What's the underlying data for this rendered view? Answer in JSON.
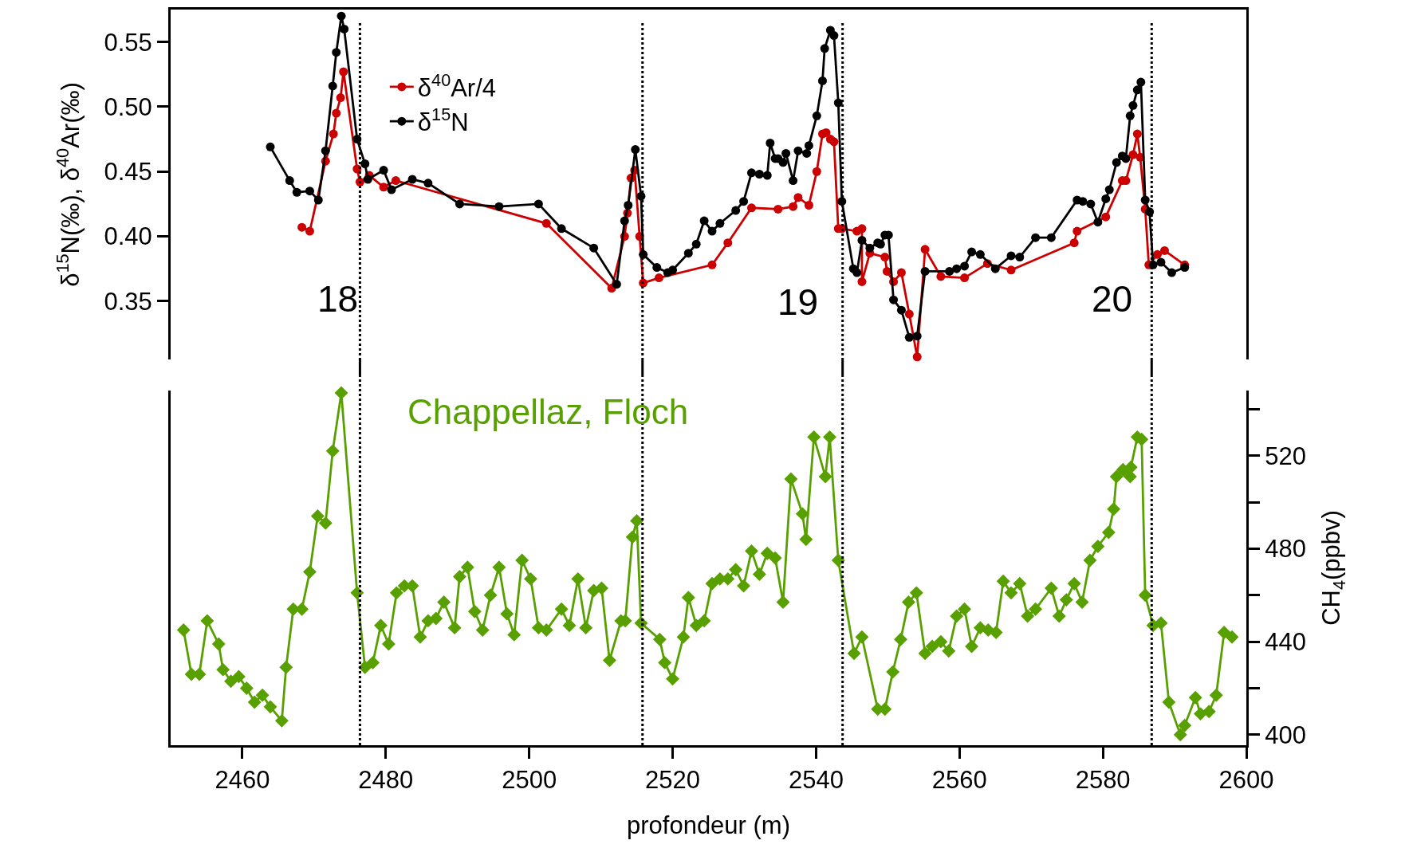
{
  "chart_data": [
    {
      "type": "line",
      "ylabel": "δ$^{15}$N(‰), δ$^{40}$Ar(‰)",
      "xlim": [
        2450,
        2600
      ],
      "tick_labels": "y",
      "ylim": [
        0.305,
        0.575
      ],
      "yticks": [
        0.35,
        {
          "value": 0.4,
          "label": "0.40"
        },
        0.45,
        {
          "value": 0.5,
          "label": "0.50"
        },
        0.55
      ],
      "grid": false,
      "legend": "top left",
      "line_style": "solid",
      "ref_lines": [
        {
          "axis": "x",
          "value": 2476.4,
          "color": "#000000",
          "line_style": "dotted"
        },
        {
          "axis": "x",
          "value": 2515.8,
          "color": "#000000",
          "line_style": "dotted"
        },
        {
          "axis": "x",
          "value": 2543.7,
          "color": "#000000",
          "line_style": "dotted"
        },
        {
          "axis": "x",
          "value": 2586.8,
          "color": "#000000",
          "line_style": "dotted"
        }
      ],
      "annotations": [
        "18",
        "19",
        "20"
      ],
      "series": [
        {
          "name": "δ$^{40}$Ar/4",
          "color": "#cc0000",
          "marker": "circle",
          "x": [
            2468.3,
            2469.4,
            2471.6,
            2472.7,
            2473.1,
            2473.7,
            2474.1,
            2476.0,
            2476.4,
            2477.7,
            2479.7,
            2481.4,
            2502.4,
            2511.5,
            2513.3,
            2513.7,
            2514.2,
            2514.7,
            2515.4,
            2515.9,
            2518.1,
            2525.5,
            2527.7,
            2531.0,
            2534.7,
            2536.8,
            2537.5,
            2539.0,
            2540.1,
            2540.9,
            2541.4,
            2542.0,
            2542.5,
            2543.1,
            2543.6,
            2545.7,
            2546.4,
            2546.4,
            2547.5,
            2549.6,
            2549.9,
            2550.8,
            2551.9,
            2553.0,
            2554.1,
            2555.2,
            2557.4,
            2560.7,
            2563.9,
            2567.2,
            2576.0,
            2576.4,
            2580.4,
            2582.7,
            2583.2,
            2584.2,
            2584.8,
            2585.2,
            2585.9,
            2586.4,
            2587.6,
            2588.6,
            2591.4
          ],
          "values": [
            0.407,
            0.404,
            0.458,
            0.479,
            0.495,
            0.507,
            0.527,
            0.452,
            0.442,
            0.447,
            0.438,
            0.443,
            0.41,
            0.36,
            0.4,
            0.418,
            0.445,
            0.451,
            0.4,
            0.364,
            0.368,
            0.378,
            0.395,
            0.422,
            0.421,
            0.423,
            0.43,
            0.424,
            0.45,
            0.479,
            0.48,
            0.475,
            0.473,
            0.406,
            0.406,
            0.404,
            0.406,
            0.365,
            0.387,
            0.384,
            0.373,
            0.365,
            0.372,
            0.34,
            0.307,
            0.39,
            0.369,
            0.368,
            0.379,
            0.374,
            0.395,
            0.404,
            0.415,
            0.443,
            0.443,
            0.463,
            0.479,
            0.461,
            0.421,
            0.378,
            0.386,
            0.389,
            0.378
          ]
        },
        {
          "name": "δ$^{15}$N",
          "color": "#000000",
          "marker": "circle",
          "x": [
            2463.9,
            2466.6,
            2467.6,
            2469.4,
            2470.6,
            2471.6,
            2472.6,
            2473.1,
            2473.8,
            2474.2,
            2476.0,
            2477.1,
            2477.5,
            2479.7,
            2480.8,
            2483.7,
            2485.9,
            2490.3,
            2495.8,
            2501.3,
            2504.5,
            2509.0,
            2512.2,
            2513.3,
            2513.8,
            2514.8,
            2515.6,
            2515.9,
            2517.8,
            2519.3,
            2520.0,
            2522.2,
            2523.3,
            2524.4,
            2525.5,
            2526.6,
            2528.8,
            2529.9,
            2531.0,
            2532.1,
            2533.2,
            2533.6,
            2534.3,
            2534.7,
            2535.4,
            2535.8,
            2536.8,
            2537.5,
            2538.7,
            2539.0,
            2540.1,
            2540.9,
            2541.2,
            2542.0,
            2542.5,
            2543.1,
            2543.6,
            2545.2,
            2545.7,
            2546.4,
            2547.5,
            2548.6,
            2549.0,
            2549.6,
            2550.1,
            2550.8,
            2551.9,
            2553.0,
            2554.1,
            2555.2,
            2558.6,
            2559.6,
            2560.7,
            2561.7,
            2562.9,
            2565.0,
            2567.2,
            2568.4,
            2570.6,
            2572.8,
            2576.4,
            2577.2,
            2578.3,
            2579.3,
            2580.4,
            2580.9,
            2581.9,
            2582.7,
            2583.2,
            2583.8,
            2584.2,
            2584.8,
            2585.3,
            2585.9,
            2586.5,
            2587.0,
            2588.1,
            2589.6,
            2591.4
          ],
          "values": [
            0.469,
            0.443,
            0.434,
            0.435,
            0.428,
            0.466,
            0.516,
            0.542,
            0.57,
            0.56,
            0.475,
            0.456,
            0.444,
            0.451,
            0.436,
            0.444,
            0.441,
            0.425,
            0.423,
            0.425,
            0.406,
            0.391,
            0.363,
            0.412,
            0.424,
            0.467,
            0.431,
            0.386,
            0.376,
            0.372,
            0.374,
            0.387,
            0.394,
            0.412,
            0.404,
            0.41,
            0.42,
            0.427,
            0.449,
            0.448,
            0.447,
            0.472,
            0.46,
            0.46,
            0.457,
            0.464,
            0.443,
            0.466,
            0.464,
            0.47,
            0.493,
            0.52,
            0.545,
            0.559,
            0.555,
            0.503,
            0.427,
            0.375,
            0.372,
            0.397,
            0.391,
            0.395,
            0.394,
            0.401,
            0.401,
            0.351,
            0.343,
            0.322,
            0.323,
            0.373,
            0.373,
            0.375,
            0.377,
            0.388,
            0.386,
            0.375,
            0.385,
            0.384,
            0.399,
            0.399,
            0.428,
            0.427,
            0.425,
            0.411,
            0.429,
            0.436,
            0.457,
            0.462,
            0.46,
            0.493,
            0.501,
            0.513,
            0.519,
            0.428,
            0.419,
            0.378,
            0.38,
            0.372,
            0.376
          ]
        }
      ]
    },
    {
      "type": "line",
      "xlabel": "profondeur (m)",
      "y2label": "CH$_{4}$(ppbv)",
      "xlim": [
        2450,
        2600
      ],
      "xticks": [
        2460,
        2480,
        2500,
        2520,
        2540,
        2560,
        2580,
        2600
      ],
      "y2lim": [
        395.5,
        548
      ],
      "y2ticks": [
        400,
        {
          "value": 420,
          "label": null
        },
        440,
        {
          "value": 460,
          "label": null
        },
        480,
        {
          "value": 500,
          "label": null
        },
        520,
        {
          "value": 540,
          "label": null
        }
      ],
      "grid": false,
      "line_style": "solid",
      "ref_lines": [
        {
          "axis": "x",
          "value": 2476.4,
          "color": "#000000",
          "line_style": "dotted"
        },
        {
          "axis": "x",
          "value": 2515.8,
          "color": "#000000",
          "line_style": "dotted"
        },
        {
          "axis": "x",
          "value": 2543.7,
          "color": "#000000",
          "line_style": "dotted"
        },
        {
          "axis": "x",
          "value": 2586.8,
          "color": "#000000",
          "line_style": "dotted"
        }
      ],
      "series": [
        {
          "name": "Chappellaz, Floch",
          "color": "#58a000",
          "marker": "diamond",
          "axis": "y2",
          "x": [
            2451.8,
            2452.9,
            2454.0,
            2455.1,
            2456.7,
            2457.3,
            2458.4,
            2459.5,
            2460.6,
            2461.7,
            2462.8,
            2463.9,
            2465.5,
            2466.1,
            2467.1,
            2468.3,
            2469.4,
            2470.5,
            2471.6,
            2472.6,
            2473.8,
            2476.0,
            2477.1,
            2478.2,
            2479.3,
            2480.4,
            2481.5,
            2482.6,
            2483.7,
            2484.8,
            2485.9,
            2487.0,
            2488.1,
            2489.6,
            2490.3,
            2491.4,
            2492.4,
            2493.5,
            2494.6,
            2495.8,
            2496.9,
            2497.9,
            2499.0,
            2500.2,
            2501.3,
            2502.4,
            2504.5,
            2505.6,
            2506.8,
            2507.9,
            2509.0,
            2510.1,
            2511.2,
            2512.8,
            2513.4,
            2514.4,
            2515.0,
            2515.6,
            2518.2,
            2518.9,
            2520.0,
            2521.5,
            2522.2,
            2523.3,
            2524.4,
            2525.5,
            2526.6,
            2527.7,
            2528.8,
            2529.9,
            2531.0,
            2532.1,
            2533.2,
            2534.3,
            2535.4,
            2536.5,
            2538.1,
            2538.6,
            2539.7,
            2541.3,
            2541.9,
            2543.1,
            2545.3,
            2546.4,
            2548.6,
            2549.6,
            2550.7,
            2551.8,
            2552.9,
            2554.0,
            2555.2,
            2556.2,
            2557.4,
            2558.5,
            2559.6,
            2560.7,
            2561.7,
            2562.9,
            2564.0,
            2565.1,
            2566.1,
            2567.2,
            2568.4,
            2569.5,
            2570.6,
            2572.8,
            2573.9,
            2574.9,
            2576.0,
            2577.1,
            2578.2,
            2579.3,
            2580.8,
            2581.5,
            2581.9,
            2582.8,
            2583.2,
            2583.8,
            2583.9,
            2584.8,
            2585.4,
            2585.9,
            2587.0,
            2588.1,
            2589.2,
            2590.8,
            2591.4,
            2592.9,
            2593.6,
            2594.8,
            2595.8,
            2596.9,
            2598.0
          ],
          "values": [
            445,
            426,
            426,
            449,
            439,
            428,
            423,
            425,
            420,
            414,
            417,
            412,
            406,
            429,
            454,
            454,
            470,
            494,
            491,
            522,
            547,
            461,
            429,
            431,
            447,
            439,
            461,
            464,
            464,
            442,
            449,
            450,
            457,
            446,
            468,
            472,
            453,
            445,
            460,
            472,
            452,
            443,
            475,
            467,
            446,
            445,
            454,
            447,
            467,
            446,
            462,
            463,
            432,
            449,
            449,
            485,
            492,
            448,
            441,
            431,
            424,
            442,
            459,
            447,
            449,
            465,
            467,
            467,
            471,
            464,
            479,
            469,
            478,
            476,
            457,
            510,
            495,
            484,
            528,
            511,
            528,
            475,
            435,
            442,
            411,
            411,
            427,
            441,
            457,
            461,
            435,
            438,
            440,
            436,
            451,
            454,
            438,
            446,
            445,
            444,
            466,
            461,
            465,
            451,
            454,
            463,
            451,
            458,
            465,
            457,
            475,
            481,
            487,
            497,
            511,
            514,
            513,
            511,
            515,
            528,
            527,
            460,
            447,
            448,
            414,
            400,
            404,
            416,
            409,
            410,
            417,
            444,
            442
          ]
        }
      ]
    }
  ]
}
